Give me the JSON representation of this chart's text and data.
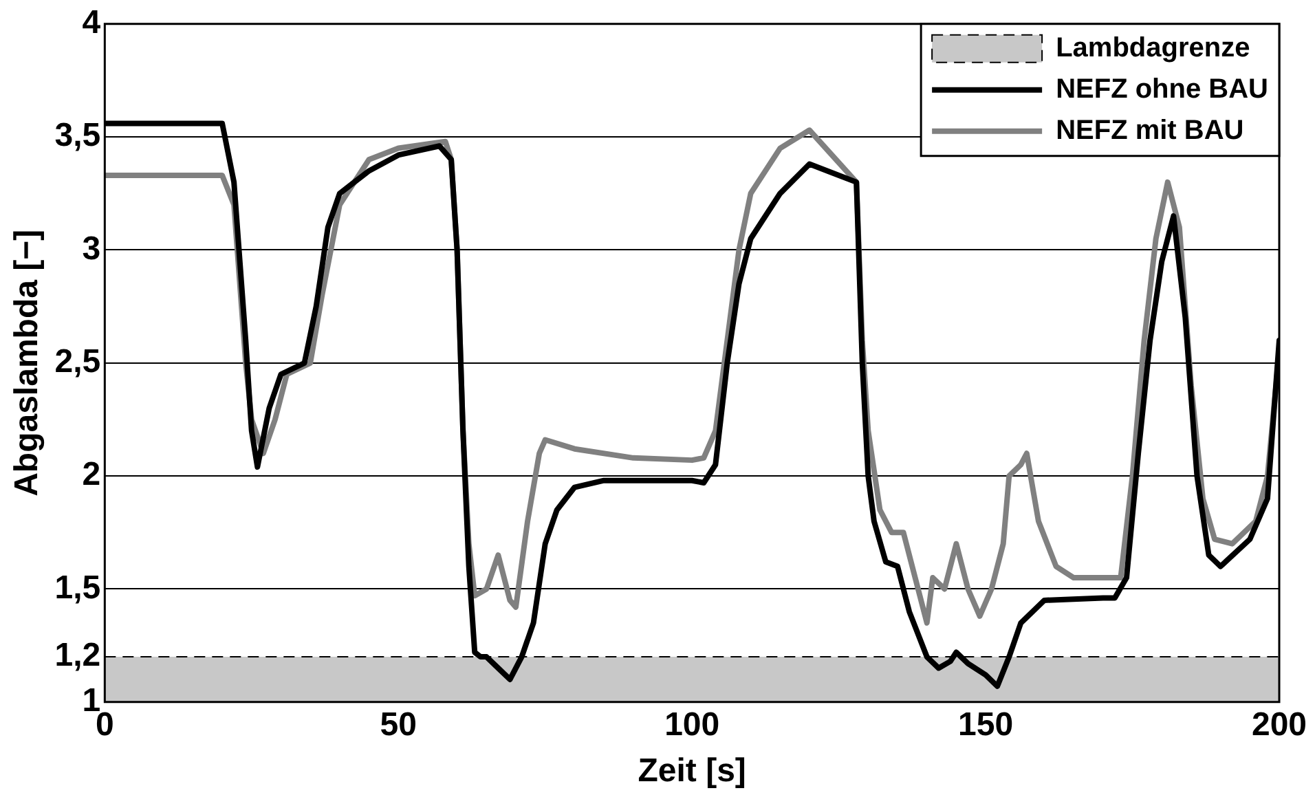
{
  "chart_data": {
    "type": "line",
    "xlabel": "Zeit [s]",
    "ylabel": "Abgaslambda [−]",
    "xlim": [
      0,
      200
    ],
    "xticks": [
      0,
      50,
      100,
      150,
      200
    ],
    "ylim": [
      1,
      4
    ],
    "yticks": [
      1,
      {
        "value": 1.2,
        "label": "1,2"
      },
      {
        "value": 1.5,
        "label": "1,5"
      },
      2,
      {
        "value": 2.5,
        "label": "2,5"
      },
      3,
      {
        "value": 3.5,
        "label": "3,5"
      },
      4
    ],
    "grid": "y",
    "legend": "top right",
    "line_style": "solid",
    "marker": "none",
    "bands": [
      {
        "axis": "y",
        "from": 1,
        "to": 1.2,
        "label": "Lambdagrenze",
        "color": "#c8c8c8"
      }
    ],
    "ref_lines": [
      {
        "axis": "y",
        "value": 1.2,
        "color": "#000000",
        "line_style": "dashed"
      }
    ],
    "series": [
      {
        "name": "NEFZ ohne BAU",
        "color": "#000000",
        "x": [
          0,
          20,
          22,
          24,
          25,
          26,
          28,
          30,
          34,
          36,
          38,
          40,
          45,
          50,
          57,
          59,
          60,
          61,
          62,
          63,
          64,
          65,
          67,
          69,
          71,
          73,
          75,
          77,
          80,
          85,
          100,
          102,
          104,
          106,
          108,
          110,
          115,
          120,
          128,
          129,
          130,
          131,
          133,
          135,
          137,
          140,
          142,
          144,
          145,
          147,
          150,
          152,
          154,
          156,
          160,
          170,
          172,
          174,
          176,
          178,
          180,
          182,
          184,
          186,
          188,
          190,
          195,
          198,
          200
        ],
        "values": [
          3.56,
          3.56,
          3.3,
          2.6,
          2.2,
          2.04,
          2.3,
          2.45,
          2.5,
          2.75,
          3.1,
          3.25,
          3.35,
          3.42,
          3.46,
          3.4,
          3.0,
          2.2,
          1.6,
          1.22,
          1.2,
          1.2,
          1.15,
          1.1,
          1.2,
          1.35,
          1.7,
          1.85,
          1.95,
          1.98,
          1.98,
          1.97,
          2.05,
          2.5,
          2.85,
          3.05,
          3.25,
          3.38,
          3.3,
          2.5,
          2.0,
          1.8,
          1.62,
          1.6,
          1.4,
          1.2,
          1.15,
          1.18,
          1.22,
          1.17,
          1.12,
          1.07,
          1.2,
          1.35,
          1.45,
          1.46,
          1.46,
          1.55,
          2.1,
          2.6,
          2.95,
          3.15,
          2.7,
          2.0,
          1.65,
          1.6,
          1.72,
          1.9,
          2.6
        ]
      },
      {
        "name": "NEFZ mit BAU",
        "color": "#808080",
        "x": [
          0,
          20,
          22,
          24,
          25,
          27,
          29,
          31,
          35,
          37,
          40,
          45,
          50,
          58,
          59,
          60,
          61,
          62,
          63,
          65,
          67,
          69,
          70,
          72,
          74,
          75,
          80,
          90,
          100,
          102,
          104,
          106,
          108,
          110,
          115,
          120,
          128,
          129,
          130,
          132,
          134,
          136,
          138,
          140,
          141,
          143,
          145,
          147,
          149,
          151,
          153,
          154,
          156,
          157,
          159,
          162,
          165,
          173,
          175,
          177,
          179,
          181,
          183,
          185,
          187,
          189,
          192,
          196,
          198,
          200
        ],
        "values": [
          3.33,
          3.33,
          3.2,
          2.5,
          2.25,
          2.1,
          2.25,
          2.45,
          2.5,
          2.8,
          3.2,
          3.4,
          3.45,
          3.48,
          3.4,
          3.0,
          2.2,
          1.7,
          1.47,
          1.5,
          1.65,
          1.45,
          1.42,
          1.8,
          2.1,
          2.16,
          2.12,
          2.08,
          2.07,
          2.08,
          2.2,
          2.6,
          3.0,
          3.25,
          3.45,
          3.53,
          3.3,
          2.6,
          2.2,
          1.85,
          1.75,
          1.75,
          1.55,
          1.35,
          1.55,
          1.5,
          1.7,
          1.5,
          1.38,
          1.5,
          1.7,
          2.0,
          2.05,
          2.1,
          1.8,
          1.6,
          1.55,
          1.55,
          2.0,
          2.6,
          3.05,
          3.3,
          3.1,
          2.4,
          1.9,
          1.72,
          1.7,
          1.8,
          2.0,
          2.55
        ]
      }
    ]
  }
}
